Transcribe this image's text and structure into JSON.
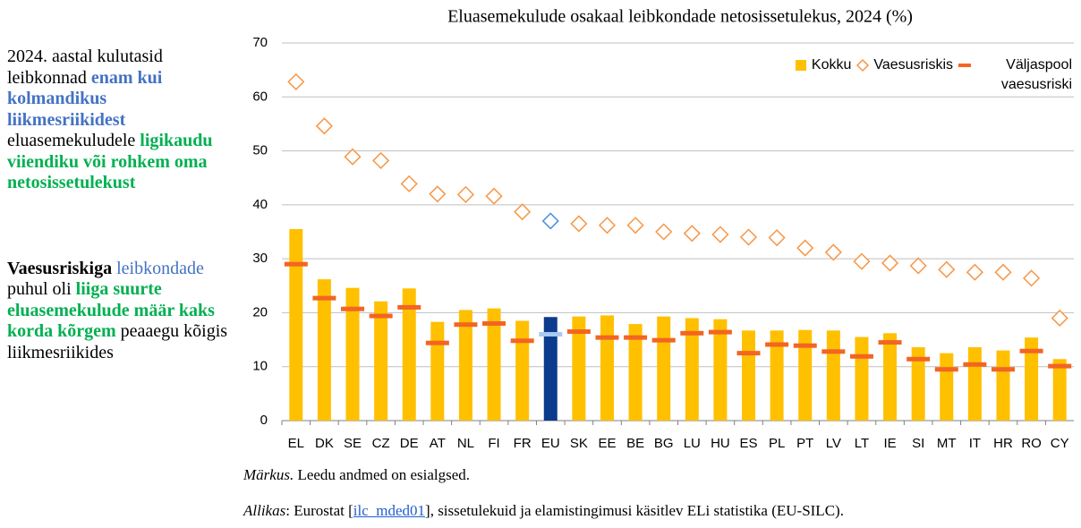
{
  "chart_data": {
    "type": "bar",
    "title": "Eluasemekulude osakaal leibkondade netosissetulekus, 2024 (%)",
    "categories": [
      "EL",
      "DK",
      "SE",
      "CZ",
      "DE",
      "AT",
      "NL",
      "FI",
      "FR",
      "EU",
      "SK",
      "EE",
      "BE",
      "BG",
      "LU",
      "HU",
      "ES",
      "PL",
      "PT",
      "LV",
      "LT",
      "IE",
      "SI",
      "MT",
      "IT",
      "HR",
      "RO",
      "CY"
    ],
    "highlight": "EU",
    "series": [
      {
        "name": "Kokku",
        "mark": "bar",
        "color": "#ffc000",
        "highlight_color": "#0b3b8c",
        "values": [
          35.5,
          26.2,
          24.6,
          22.1,
          24.5,
          18.3,
          20.5,
          20.8,
          18.5,
          19.2,
          19.3,
          19.5,
          17.9,
          19.3,
          19.0,
          18.8,
          16.7,
          16.7,
          16.8,
          16.7,
          15.5,
          16.2,
          13.6,
          12.5,
          13.6,
          13.0,
          15.4,
          11.4
        ]
      },
      {
        "name": "Vaesusriskis",
        "mark": "diamond",
        "color": "#f79646",
        "highlight_color": "#4a8fe0",
        "values": [
          62.8,
          54.6,
          48.9,
          48.2,
          43.9,
          42.0,
          41.9,
          41.6,
          38.7,
          37.0,
          36.5,
          36.2,
          36.2,
          35.0,
          34.7,
          34.5,
          34.0,
          33.9,
          32.0,
          31.2,
          29.5,
          29.2,
          28.7,
          28.0,
          27.5,
          27.5,
          26.4,
          19.0
        ]
      },
      {
        "name": "Väljaspool vaesusriski",
        "mark": "dash",
        "color": "#f26522",
        "highlight_color": "#a9c9ee",
        "values": [
          29.0,
          22.7,
          20.7,
          19.4,
          21.0,
          14.4,
          17.8,
          18.0,
          14.8,
          16.0,
          16.5,
          15.4,
          15.4,
          14.9,
          16.2,
          16.4,
          12.5,
          14.1,
          13.9,
          12.8,
          11.9,
          14.5,
          11.4,
          9.5,
          10.4,
          9.5,
          12.9,
          10.1
        ]
      }
    ],
    "ylim": [
      0,
      70
    ],
    "yticks": [
      0,
      10,
      20,
      30,
      40,
      50,
      60,
      70
    ],
    "grid": true,
    "legend": "top-right"
  },
  "notes": [
    [
      {
        "text": "2024. aastal kulutasid leibkonnad ",
        "style": "plain"
      },
      {
        "text": "enam kui kolmandikus liikmesriikidest",
        "style": "blue"
      },
      {
        "text": " eluasemekuludele ",
        "style": "plain"
      },
      {
        "text": "ligikaudu viiendiku või rohkem oma netosissetulekust",
        "style": "green"
      }
    ],
    [
      {
        "text": "Vaesusriskiga",
        "style": "bold"
      },
      {
        "text": " leibkondade",
        "style": "blue-plain"
      },
      {
        "text": " puhul oli ",
        "style": "plain"
      },
      {
        "text": "liiga suurte eluasemekulude määr kaks korda kõrgem",
        "style": "green"
      },
      {
        "text": " peaaegu kõigis liikmesriikides",
        "style": "plain"
      }
    ]
  ],
  "footnotes": {
    "note_label": "Märkus.",
    "note_text": " Leedu andmed on esialgsed.",
    "source_label": "Allikas",
    "source_pre": ": Eurostat [",
    "source_link": "ilc_mded01",
    "source_post": "], sissetulekuid ja elamistingimusi käsitlev ELi statistika (EU-SILC)."
  }
}
